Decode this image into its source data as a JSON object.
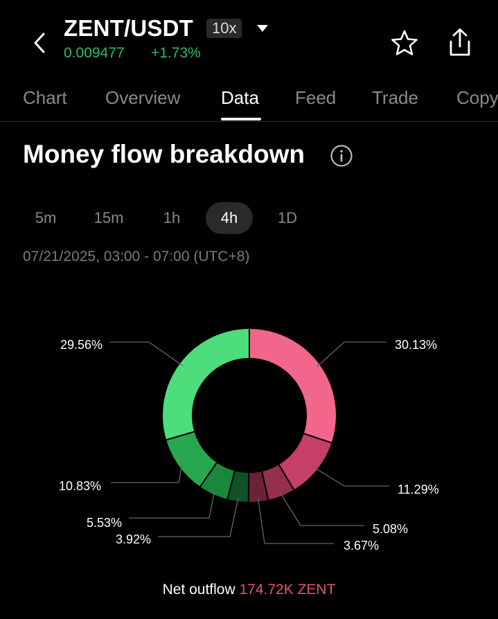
{
  "header": {
    "pair": "ZENT/USDT",
    "leverage": "10x",
    "price": "0.009477",
    "change": "+1.73%"
  },
  "tabs": [
    {
      "label": "Chart"
    },
    {
      "label": "Overview"
    },
    {
      "label": "Data"
    },
    {
      "label": "Feed"
    },
    {
      "label": "Trade"
    },
    {
      "label": "Copy"
    }
  ],
  "active_tab": "Data",
  "section": {
    "title": "Money flow breakdown"
  },
  "intervals": [
    {
      "label": "5m"
    },
    {
      "label": "15m"
    },
    {
      "label": "1h"
    },
    {
      "label": "4h"
    },
    {
      "label": "1D"
    }
  ],
  "active_interval": "4h",
  "time_range": "07/21/2025, 03:00 - 07:00 (UTC+8)",
  "chart_data": {
    "type": "pie",
    "variant": "donut",
    "slices": [
      {
        "label": "30.13%",
        "value": 30.13,
        "color": "#f2668b"
      },
      {
        "label": "11.29%",
        "value": 11.29,
        "color": "#c63f67"
      },
      {
        "label": "5.08%",
        "value": 5.08,
        "color": "#94304b"
      },
      {
        "label": "3.67%",
        "value": 3.67,
        "color": "#6a2236"
      },
      {
        "label": "3.92%",
        "value": 3.92,
        "color": "#0e5228"
      },
      {
        "label": "5.53%",
        "value": 5.53,
        "color": "#19873c"
      },
      {
        "label": "10.83%",
        "value": 10.83,
        "color": "#27a84f"
      },
      {
        "label": "29.56%",
        "value": 29.56,
        "color": "#4ddd7c"
      }
    ]
  },
  "net_flow": {
    "label": "Net outflow",
    "value": "174.72K ZENT"
  },
  "colors": {
    "positive": "#2fbd6a",
    "negative": "#e05470"
  }
}
